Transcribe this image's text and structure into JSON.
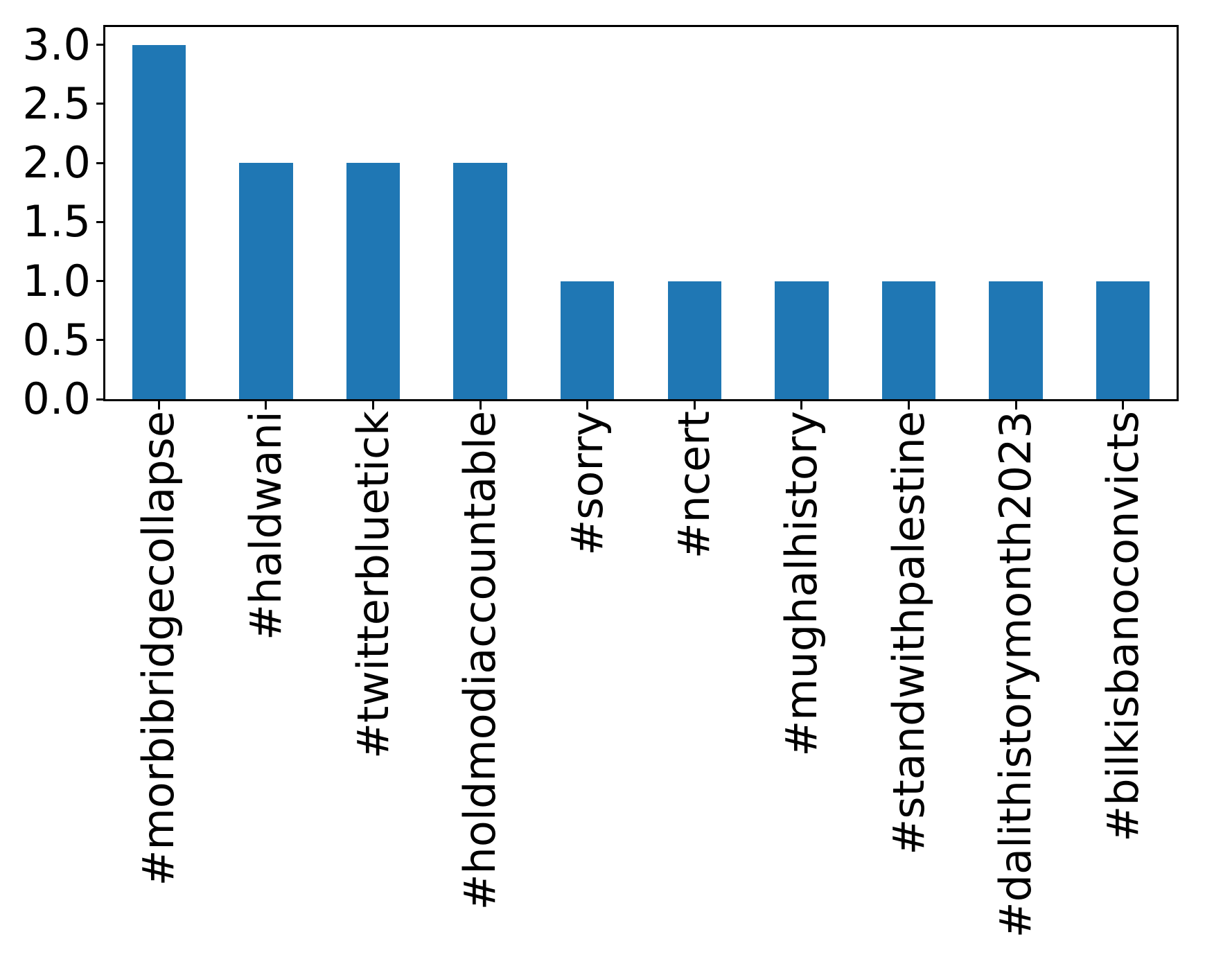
{
  "chart_data": {
    "type": "bar",
    "title": "",
    "xlabel": "",
    "ylabel": "",
    "categories": [
      "#morbibridgecollapse",
      "#haldwani",
      "#twitterbluetick",
      "#holdmodiaccountable",
      "#sorry",
      "#ncert",
      "#mughalhistory",
      "#standwithpalestine",
      "#dalithistorymonth2023",
      "#bilkisbanoconvicts"
    ],
    "values": [
      3,
      2,
      2,
      2,
      1,
      1,
      1,
      1,
      1,
      1
    ],
    "ylim": [
      0,
      3.15
    ],
    "ytick_values": [
      0.0,
      0.5,
      1.0,
      1.5,
      2.0,
      2.5,
      3.0
    ],
    "ytick_labels": [
      "0.0",
      "0.5",
      "1.0",
      "1.5",
      "2.0",
      "2.5",
      "3.0"
    ],
    "xtick_rotation": 90,
    "grid": false,
    "legend_position": "none",
    "bar_color": "#1f77b4",
    "axis_color": "#000000",
    "background_color": "#ffffff",
    "bar_width_ratio": 0.5
  }
}
